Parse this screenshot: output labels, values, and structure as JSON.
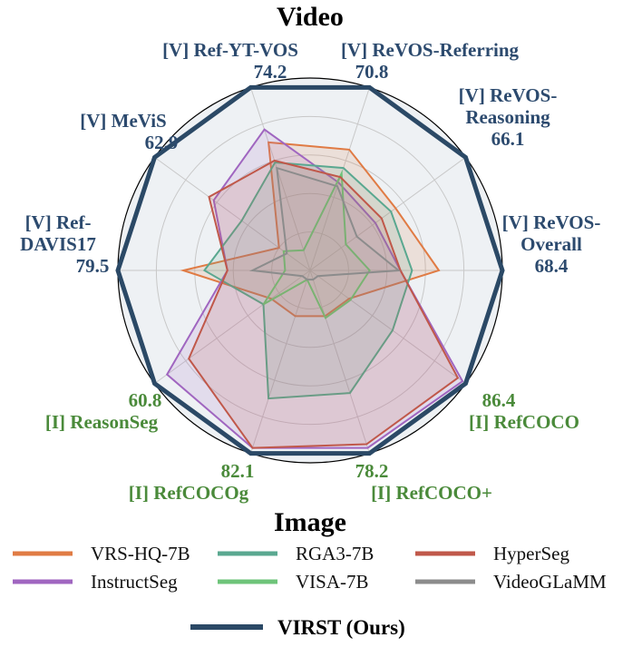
{
  "chart_data": {
    "type": "radar",
    "title_top": "Video",
    "title_bottom": "Image",
    "colors": {
      "video_axis_text": "#2c4a6e",
      "image_axis_text": "#4a8a3a",
      "grid": "#c8c8c8",
      "background": "#eef1f4",
      "outer_circle": "#000000"
    },
    "axes": [
      {
        "label": "[V] ReVOS-\nOverall",
        "max": "68.4",
        "group": "video"
      },
      {
        "label": "[V] ReVOS-\nReasoning",
        "max": "66.1",
        "group": "video"
      },
      {
        "label": "[V] ReVOS-Referring",
        "max": "70.8",
        "group": "video"
      },
      {
        "label": "[V] Ref-YT-VOS",
        "max": "74.2",
        "group": "video"
      },
      {
        "label": "[V] MeViS",
        "max": "62.9",
        "group": "video"
      },
      {
        "label": "[V] Ref-\nDAVIS17",
        "max": "79.5",
        "group": "video"
      },
      {
        "label": "[I] ReasonSeg",
        "max": "60.8",
        "group": "image"
      },
      {
        "label": "[I] RefCOCOg",
        "max": "82.1",
        "group": "image"
      },
      {
        "label": "[I] RefCOCO+",
        "max": "78.2",
        "group": "image"
      },
      {
        "label": "[I] RefCOCO",
        "max": "86.4",
        "group": "image"
      }
    ],
    "scale_note": "values are fractions of the chart radius (normalized score)",
    "series": [
      {
        "name": "VRS-HQ-7B",
        "color": "#e07b44",
        "fill_opacity": 0.15,
        "width": 2,
        "values": [
          0.67,
          0.55,
          0.66,
          0.7,
          0.2,
          0.66,
          0.25,
          0.25,
          0.25,
          0.25
        ]
      },
      {
        "name": "InstructSeg",
        "color": "#a066c0",
        "fill_opacity": 0.15,
        "width": 2,
        "values": [
          0.47,
          0.42,
          0.48,
          0.77,
          0.62,
          0.43,
          0.92,
          0.97,
          0.97,
          0.98
        ]
      },
      {
        "name": "RGA3-7B",
        "color": "#5aa890",
        "fill_opacity": 0.15,
        "width": 2,
        "values": [
          0.53,
          0.52,
          0.56,
          0.59,
          0.44,
          0.55,
          0.3,
          0.7,
          0.67,
          0.53
        ]
      },
      {
        "name": "VISA-7B",
        "color": "#6ec47a",
        "fill_opacity": 0.05,
        "width": 2,
        "values": [
          0.31,
          0.23,
          0.53,
          0.11,
          0.17,
          0.13,
          0.3,
          0.05,
          0.26,
          0.26
        ]
      },
      {
        "name": "HyperSeg",
        "color": "#c0584a",
        "fill_opacity": 0.15,
        "width": 2,
        "values": [
          0.47,
          0.46,
          0.51,
          0.6,
          0.65,
          0.43,
          0.78,
          0.97,
          0.95,
          0.95
        ]
      },
      {
        "name": "VideoGLaMM",
        "color": "#8c8c8c",
        "fill_opacity": 0.05,
        "width": 2,
        "values": [
          0.46,
          0.3,
          0.46,
          0.56,
          0.15,
          0.3,
          0.05,
          0.05,
          0.05,
          0.05
        ]
      },
      {
        "name": "VIRST (Ours)",
        "color": "#2b4966",
        "fill_opacity": 0.0,
        "width": 5,
        "values": [
          1,
          1,
          1,
          1,
          1,
          1,
          1,
          1,
          1,
          1
        ]
      }
    ],
    "legend": [
      {
        "label": "VRS-HQ-7B",
        "color": "#e07b44"
      },
      {
        "label": "InstructSeg",
        "color": "#a066c0"
      },
      {
        "label": "RGA3-7B",
        "color": "#5aa890"
      },
      {
        "label": "VISA-7B",
        "color": "#6ec47a"
      },
      {
        "label": "HyperSeg",
        "color": "#c0584a"
      },
      {
        "label": "VideoGLaMM",
        "color": "#8c8c8c"
      },
      {
        "label": "VIRST (Ours)",
        "color": "#2b4966",
        "bold": true
      }
    ]
  }
}
